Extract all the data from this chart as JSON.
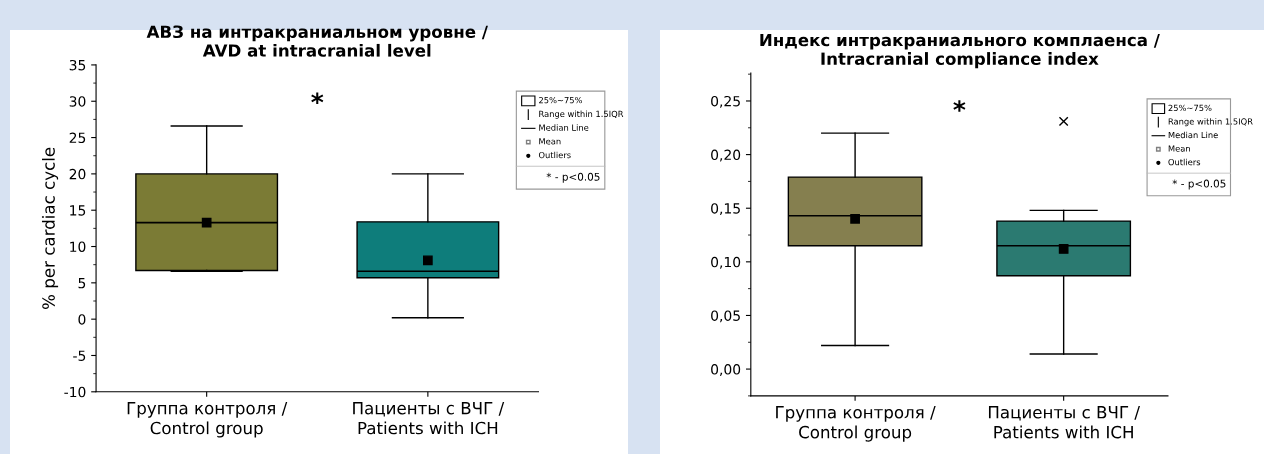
{
  "chart_data": [
    {
      "type": "box",
      "title": "АВЗ на интракраниальном уровне /\nAVD at intracranial level",
      "ylabel": "% per cardiac cycle",
      "categories": [
        "Группа контроля /\nControl group",
        "Пациенты с ВЧГ /\nPatients with ICH"
      ],
      "colors": [
        "#7b7b35",
        "#0e7d7b"
      ],
      "boxes": [
        {
          "low": 6.6,
          "q1": 6.7,
          "median": 13.3,
          "q3": 20.0,
          "high": 26.6,
          "mean": 13.3
        },
        {
          "low": 0.2,
          "q1": 5.7,
          "median": 6.6,
          "q3": 13.4,
          "high": 20.0,
          "mean": 8.1
        }
      ],
      "ylim": [
        -10,
        35
      ],
      "yticks": [
        -10,
        -5,
        0,
        5,
        10,
        15,
        20,
        25,
        30,
        35
      ],
      "annotations": [
        "*",
        "25%~75%",
        "Range within 1.5IQR",
        "Median Line",
        "Mean",
        "Outliers",
        "* - p<0.05"
      ]
    },
    {
      "type": "box",
      "title": "Индекс интракраниального комплаенса /\nIntracranial compliance index",
      "categories": [
        "Группа контроля /\nControl group",
        "Пациенты с ВЧГ /\nPatients with ICH"
      ],
      "colors": [
        "#857f4f",
        "#2b7a71"
      ],
      "boxes": [
        {
          "low": 0.022,
          "q1": 0.115,
          "median": 0.143,
          "q3": 0.179,
          "high": 0.22,
          "mean": 0.14
        },
        {
          "low": 0.014,
          "q1": 0.087,
          "median": 0.115,
          "q3": 0.138,
          "high": 0.148,
          "mean": 0.112,
          "outliers": [
            0.231
          ]
        }
      ],
      "ylim": [
        -0.025,
        0.276
      ],
      "yticks": [
        {
          "value": 0.0,
          "label": "0,00"
        },
        {
          "value": 0.05,
          "label": "0,05"
        },
        {
          "value": 0.1,
          "label": "0,10"
        },
        {
          "value": 0.15,
          "label": "0,15"
        },
        {
          "value": 0.2,
          "label": "0,20"
        },
        {
          "value": 0.25,
          "label": "0,25"
        }
      ],
      "annotations": [
        "*",
        "25%~75%",
        "Range within 1.5IQR",
        "Median Line",
        "Mean",
        "Outliers",
        "* - p<0.05"
      ]
    }
  ]
}
